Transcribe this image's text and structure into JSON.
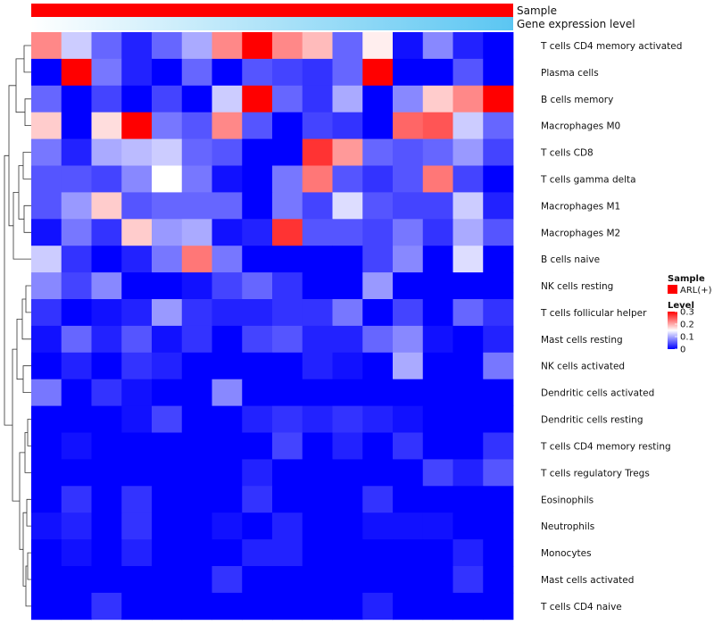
{
  "chart_data": {
    "type": "heatmap",
    "title": "",
    "annotation_tracks": [
      {
        "label": "Sample",
        "color": "#ff0000"
      },
      {
        "label": "Gene expression level",
        "gradient": [
          "#ffffff",
          "#5bc6f2"
        ]
      }
    ],
    "columns": 16,
    "rows": [
      {
        "name": "T cells CD4 memory activated",
        "values": [
          0.22,
          0.12,
          0.06,
          0.02,
          0.06,
          0.1,
          0.22,
          0.3,
          0.22,
          0.19,
          0.06,
          0.16,
          0.01,
          0.08,
          0.02,
          0.0
        ]
      },
      {
        "name": "Plasma cells",
        "values": [
          0.0,
          0.3,
          0.07,
          0.02,
          0.0,
          0.06,
          0.0,
          0.05,
          0.04,
          0.03,
          0.06,
          0.3,
          0.0,
          0.0,
          0.05,
          0.0
        ]
      },
      {
        "name": "B cells memory",
        "values": [
          0.06,
          0.0,
          0.04,
          0.0,
          0.04,
          0.0,
          0.12,
          0.3,
          0.06,
          0.03,
          0.1,
          0.0,
          0.08,
          0.18,
          0.22,
          0.3
        ]
      },
      {
        "name": "Macrophages M0",
        "values": [
          0.18,
          0.0,
          0.17,
          0.3,
          0.07,
          0.05,
          0.22,
          0.05,
          0.0,
          0.04,
          0.03,
          0.0,
          0.24,
          0.25,
          0.12,
          0.06
        ]
      },
      {
        "name": "T cells CD8",
        "values": [
          0.07,
          0.02,
          0.1,
          0.11,
          0.12,
          0.06,
          0.05,
          0.0,
          0.0,
          0.27,
          0.21,
          0.06,
          0.05,
          0.06,
          0.09,
          0.04
        ]
      },
      {
        "name": "T cells gamma delta",
        "values": [
          0.05,
          0.05,
          0.04,
          0.08,
          0.15,
          0.07,
          0.01,
          0.0,
          0.07,
          0.23,
          0.05,
          0.03,
          0.05,
          0.23,
          0.04,
          0.0
        ]
      },
      {
        "name": "Macrophages M1",
        "values": [
          0.05,
          0.09,
          0.18,
          0.05,
          0.06,
          0.06,
          0.06,
          0.0,
          0.07,
          0.04,
          0.13,
          0.05,
          0.04,
          0.04,
          0.12,
          0.02
        ]
      },
      {
        "name": "Macrophages M2",
        "values": [
          0.01,
          0.07,
          0.03,
          0.18,
          0.09,
          0.1,
          0.01,
          0.02,
          0.27,
          0.05,
          0.05,
          0.04,
          0.07,
          0.03,
          0.1,
          0.05
        ]
      },
      {
        "name": "B cells naive",
        "values": [
          0.12,
          0.03,
          0.0,
          0.02,
          0.07,
          0.23,
          0.07,
          0.0,
          0.0,
          0.0,
          0.0,
          0.04,
          0.08,
          0.0,
          0.13,
          0.0
        ]
      },
      {
        "name": "NK cells resting",
        "values": [
          0.08,
          0.04,
          0.08,
          0.0,
          0.0,
          0.01,
          0.04,
          0.06,
          0.03,
          0.0,
          0.0,
          0.09,
          0.0,
          0.0,
          0.0,
          0.0
        ]
      },
      {
        "name": "T cells follicular helper",
        "values": [
          0.03,
          0.0,
          0.01,
          0.02,
          0.09,
          0.03,
          0.02,
          0.02,
          0.03,
          0.03,
          0.07,
          0.0,
          0.04,
          0.0,
          0.06,
          0.03
        ]
      },
      {
        "name": "Mast cells resting",
        "values": [
          0.01,
          0.06,
          0.02,
          0.05,
          0.01,
          0.03,
          0.0,
          0.04,
          0.05,
          0.02,
          0.02,
          0.06,
          0.08,
          0.01,
          0.0,
          0.02
        ]
      },
      {
        "name": "NK cells activated",
        "values": [
          0.0,
          0.02,
          0.0,
          0.03,
          0.02,
          0.0,
          0.0,
          0.0,
          0.0,
          0.02,
          0.01,
          0.0,
          0.1,
          0.0,
          0.0,
          0.07
        ]
      },
      {
        "name": "Dendritic cells activated",
        "values": [
          0.07,
          0.0,
          0.03,
          0.01,
          0.0,
          0.0,
          0.08,
          0.0,
          0.0,
          0.0,
          0.0,
          0.0,
          0.0,
          0.0,
          0.0,
          0.0
        ]
      },
      {
        "name": "Dendritic cells resting",
        "values": [
          0.0,
          0.0,
          0.0,
          0.01,
          0.04,
          0.0,
          0.0,
          0.02,
          0.03,
          0.02,
          0.03,
          0.02,
          0.01,
          0.0,
          0.0,
          0.0
        ]
      },
      {
        "name": "T cells CD4 memory resting",
        "values": [
          0.0,
          0.01,
          0.0,
          0.0,
          0.0,
          0.0,
          0.0,
          0.0,
          0.04,
          0.0,
          0.02,
          0.0,
          0.03,
          0.0,
          0.0,
          0.03
        ]
      },
      {
        "name": "T cells regulatory  Tregs",
        "values": [
          0.0,
          0.0,
          0.0,
          0.0,
          0.0,
          0.0,
          0.0,
          0.02,
          0.0,
          0.0,
          0.0,
          0.0,
          0.0,
          0.04,
          0.02,
          0.05
        ]
      },
      {
        "name": "Eosinophils",
        "values": [
          0.0,
          0.03,
          0.0,
          0.03,
          0.0,
          0.0,
          0.0,
          0.03,
          0.0,
          0.0,
          0.0,
          0.03,
          0.0,
          0.0,
          0.0,
          0.0
        ]
      },
      {
        "name": "Neutrophils",
        "values": [
          0.01,
          0.02,
          0.0,
          0.03,
          0.0,
          0.0,
          0.01,
          0.0,
          0.02,
          0.0,
          0.0,
          0.01,
          0.01,
          0.01,
          0.0,
          0.0
        ]
      },
      {
        "name": "Monocytes",
        "values": [
          0.0,
          0.01,
          0.0,
          0.02,
          0.0,
          0.0,
          0.0,
          0.02,
          0.02,
          0.0,
          0.0,
          0.0,
          0.0,
          0.0,
          0.02,
          0.0
        ]
      },
      {
        "name": "Mast cells activated",
        "values": [
          0.0,
          0.0,
          0.0,
          0.0,
          0.0,
          0.0,
          0.03,
          0.0,
          0.0,
          0.0,
          0.0,
          0.0,
          0.0,
          0.0,
          0.03,
          0.0
        ]
      },
      {
        "name": "T cells CD4 naive",
        "values": [
          0.0,
          0.0,
          0.03,
          0.0,
          0.0,
          0.0,
          0.0,
          0.0,
          0.0,
          0.0,
          0.0,
          0.02,
          0.0,
          0.0,
          0.0,
          0.0
        ]
      }
    ],
    "color_scale": {
      "min": 0,
      "max": 0.3,
      "low": "#0000ff",
      "mid": "#ffffff",
      "high": "#ff0000",
      "midpoint": 0.15
    },
    "legend": {
      "sample_title": "Sample",
      "sample_entry": "ARL(+)",
      "level_title": "Level",
      "ticks": [
        0.3,
        0.2,
        0.1,
        0
      ],
      "tick_labels": [
        "0.3",
        "0.2",
        "0.1",
        "0"
      ]
    },
    "dendrogram": "row-clustering (left)"
  }
}
